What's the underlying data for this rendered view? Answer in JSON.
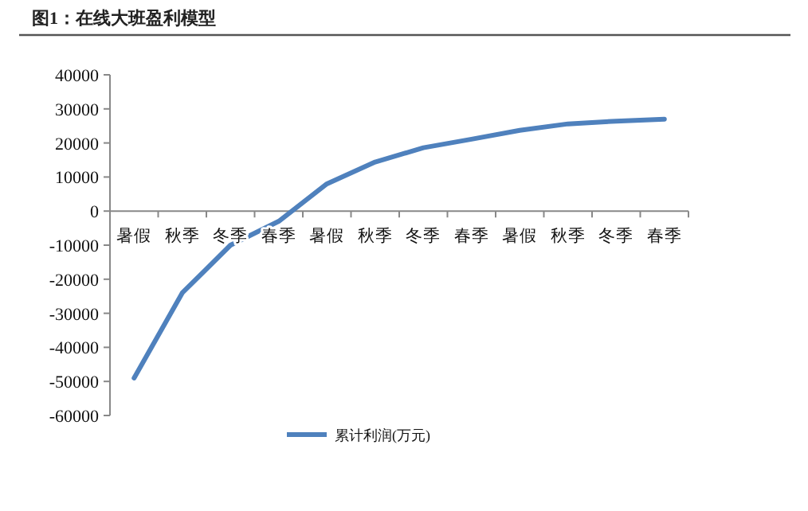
{
  "chart_data": {
    "type": "line",
    "title": "图1：在线大班盈利模型",
    "categories": [
      "暑假",
      "秋季",
      "冬季",
      "春季",
      "暑假",
      "秋季",
      "冬季",
      "春季",
      "暑假",
      "秋季",
      "冬季",
      "春季"
    ],
    "series": [
      {
        "name": "累计利润(万元)",
        "color": "#4f81bd",
        "values": [
          -49000,
          -24000,
          -10000,
          -3000,
          8000,
          14400,
          18600,
          21100,
          23700,
          25600,
          26400,
          27000
        ]
      }
    ],
    "ylim": [
      -60000,
      40000
    ],
    "yticks": [
      -60000,
      -50000,
      -40000,
      -30000,
      -20000,
      -10000,
      0,
      10000,
      20000,
      30000,
      40000
    ],
    "grid": false,
    "legend": "bottom",
    "marker": "none",
    "line_style": "solid"
  }
}
